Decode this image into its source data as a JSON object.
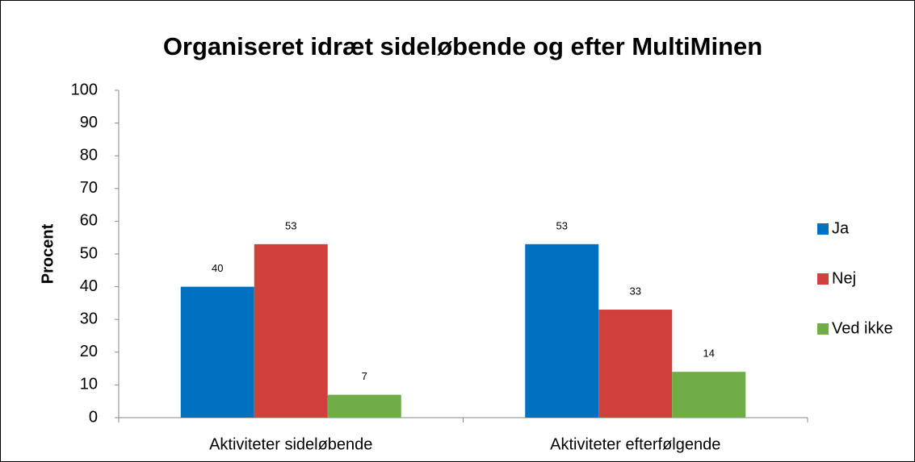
{
  "chart_data": {
    "type": "bar",
    "title": "Organiseret idræt sideløbende og efter MultiMinen",
    "y_label": "Procent",
    "categories": [
      "Aktiviteter sideløbende",
      "Aktiviteter efterfølgende"
    ],
    "series": [
      {
        "name": "Ja",
        "color": "#0070c0",
        "values": [
          40,
          53
        ]
      },
      {
        "name": "Nej",
        "color": "#d0413e",
        "values": [
          53,
          33
        ]
      },
      {
        "name": "Ved ikke",
        "color": "#70ad47",
        "values": [
          7,
          14
        ]
      }
    ],
    "ylim": [
      0,
      100
    ],
    "yticks": [
      0,
      10,
      20,
      30,
      40,
      50,
      60,
      70,
      80,
      90,
      100
    ],
    "grid": false,
    "legend": "right"
  }
}
